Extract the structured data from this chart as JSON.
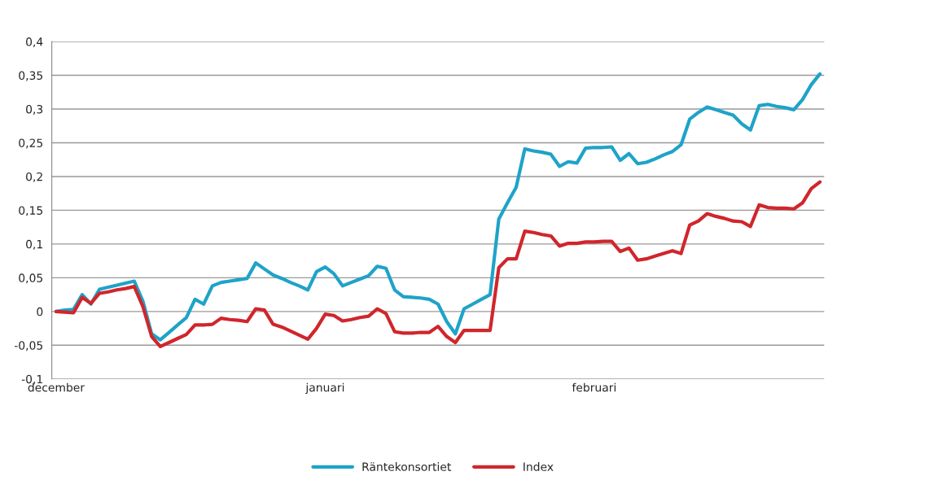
{
  "chart_data": {
    "type": "line",
    "legend": "bottom",
    "grid": "y",
    "line_style": "solid",
    "marker": "none",
    "ylim": [
      -0.1,
      0.4
    ],
    "yticks": [
      {
        "value": -0.1,
        "label": "-0,1"
      },
      {
        "value": -0.05,
        "label": "-0,05"
      },
      {
        "value": 0,
        "label": "0"
      },
      {
        "value": 0.05,
        "label": "0,05"
      },
      {
        "value": 0.1,
        "label": "0,1"
      },
      {
        "value": 0.15,
        "label": "0,15"
      },
      {
        "value": 0.2,
        "label": "0,2"
      },
      {
        "value": 0.25,
        "label": "0,25"
      },
      {
        "value": 0.3,
        "label": "0,3"
      },
      {
        "value": 0.35,
        "label": "0,35"
      },
      {
        "value": 0.4,
        "label": "0,4"
      }
    ],
    "categories": [
      "december",
      null,
      null,
      null,
      null,
      null,
      null,
      null,
      null,
      null,
      null,
      null,
      null,
      null,
      null,
      null,
      null,
      null,
      null,
      null,
      null,
      null,
      null,
      null,
      null,
      null,
      null,
      null,
      null,
      null,
      null,
      "januari",
      null,
      null,
      null,
      null,
      null,
      null,
      null,
      null,
      null,
      null,
      null,
      null,
      null,
      null,
      null,
      null,
      null,
      null,
      null,
      null,
      null,
      null,
      null,
      null,
      null,
      null,
      null,
      null,
      null,
      null,
      "februari",
      null,
      null,
      null,
      null,
      null,
      null,
      null,
      null,
      null,
      null,
      null,
      null,
      null,
      null,
      null,
      null,
      null,
      null,
      null,
      null,
      null,
      null,
      null,
      null,
      null,
      null
    ],
    "series": [
      {
        "name": "Räntekonsortiet",
        "color": "#1fa3c8",
        "values": [
          0.0,
          0.002,
          0.003,
          0.025,
          0.011,
          0.033,
          0.036,
          0.039,
          0.042,
          0.045,
          0.015,
          -0.033,
          -0.042,
          -0.031,
          -0.02,
          -0.009,
          0.018,
          0.011,
          0.038,
          0.043,
          0.045,
          0.047,
          0.049,
          0.072,
          0.063,
          0.054,
          0.049,
          0.043,
          0.038,
          0.032,
          0.059,
          0.066,
          0.056,
          0.038,
          0.043,
          0.048,
          0.053,
          0.067,
          0.064,
          0.032,
          0.022,
          0.021,
          0.02,
          0.018,
          0.011,
          -0.015,
          -0.033,
          0.004,
          0.011,
          0.018,
          0.025,
          0.137,
          0.161,
          0.184,
          0.241,
          0.238,
          0.236,
          0.233,
          0.215,
          0.222,
          0.22,
          0.242,
          0.243,
          0.243,
          0.244,
          0.224,
          0.234,
          0.219,
          0.221,
          0.226,
          0.232,
          0.237,
          0.247,
          0.285,
          0.295,
          0.303,
          0.299,
          0.295,
          0.291,
          0.278,
          0.269,
          0.305,
          0.307,
          0.304,
          0.302,
          0.299,
          0.314,
          0.336,
          0.352
        ]
      },
      {
        "name": "Index",
        "color": "#d0262c",
        "values": [
          0.0,
          -0.001,
          -0.002,
          0.021,
          0.012,
          0.027,
          0.029,
          0.032,
          0.034,
          0.037,
          0.007,
          -0.037,
          -0.052,
          -0.046,
          -0.04,
          -0.034,
          -0.02,
          -0.02,
          -0.019,
          -0.01,
          -0.012,
          -0.013,
          -0.015,
          0.004,
          0.002,
          -0.019,
          -0.023,
          -0.029,
          -0.035,
          -0.041,
          -0.025,
          -0.004,
          -0.006,
          -0.014,
          -0.012,
          -0.009,
          -0.007,
          0.004,
          -0.003,
          -0.03,
          -0.032,
          -0.032,
          -0.031,
          -0.031,
          -0.022,
          -0.037,
          -0.046,
          -0.028,
          -0.028,
          -0.028,
          -0.028,
          0.065,
          0.078,
          0.078,
          0.119,
          0.117,
          0.114,
          0.112,
          0.097,
          0.101,
          0.101,
          0.103,
          0.103,
          0.104,
          0.104,
          0.089,
          0.094,
          0.076,
          0.078,
          0.082,
          0.086,
          0.09,
          0.086,
          0.128,
          0.134,
          0.145,
          0.141,
          0.138,
          0.134,
          0.133,
          0.126,
          0.158,
          0.154,
          0.153,
          0.153,
          0.152,
          0.161,
          0.182,
          0.192
        ]
      }
    ]
  }
}
